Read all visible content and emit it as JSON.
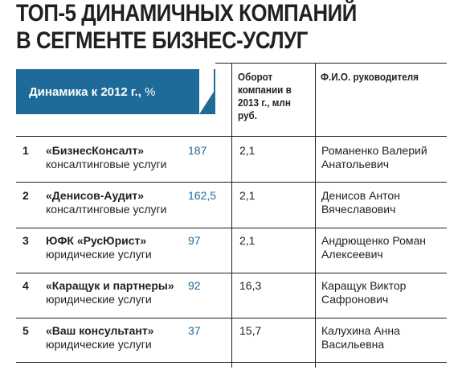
{
  "title": {
    "line1": "ТОП-5 ДИНАМИЧНЫХ КОМПАНИЙ",
    "line2": "В СЕГМЕНТЕ БИЗНЕС-УСЛУГ"
  },
  "colors": {
    "accent": "#1e6b99",
    "text": "#231f20"
  },
  "columns": {
    "growth": "Динамика к 2012 г.,",
    "growth_unit": "%",
    "turnover": "Оборот компании в 2013 г., млн руб.",
    "director": "Ф.И.О. руководителя"
  },
  "rows": [
    {
      "rank": "1",
      "company": "«БизнесКонсалт»",
      "activity": "консалтинговые услуги",
      "growth": "187",
      "turnover": "2,1",
      "director": "Романенко Валерий Анатольевич"
    },
    {
      "rank": "2",
      "company": "«Денисов-Аудит»",
      "activity": "консалтинговые услуги",
      "growth": "162,5",
      "turnover": "2,1",
      "director": "Денисов Антон Вячеславович"
    },
    {
      "rank": "3",
      "company": "ЮФК «РусЮрист»",
      "activity": "юридические услуги",
      "growth": "97",
      "turnover": "2,1",
      "director": "Андрющенко Роман Алексеевич"
    },
    {
      "rank": "4",
      "company": "«Каращук и партнеры»",
      "activity": "юридические услуги",
      "growth": "92",
      "turnover": "16,3",
      "director": "Каращук Виктор Сафронович"
    },
    {
      "rank": "5",
      "company": "«Ваш консультант»",
      "activity": "юридические услуги",
      "growth": "37",
      "turnover": "15,7",
      "director": "Калухина Анна Васильевна"
    }
  ]
}
